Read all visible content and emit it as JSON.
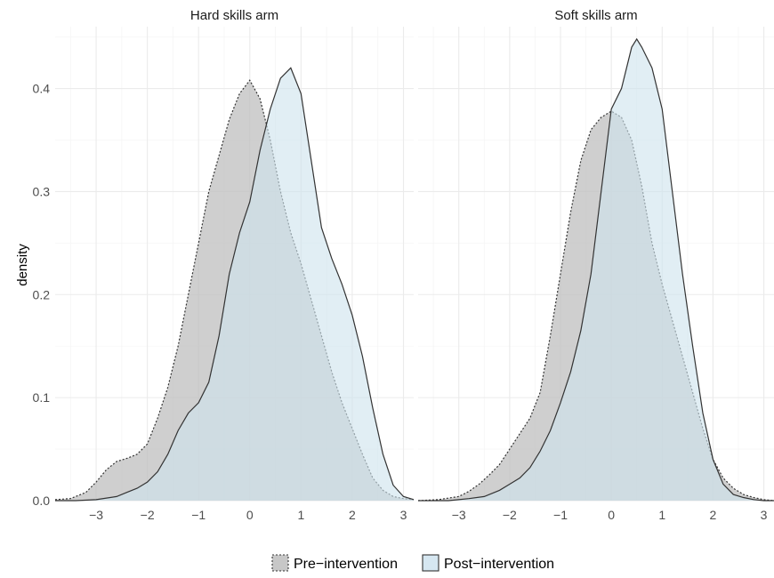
{
  "chart_data": {
    "type": "area",
    "chart_kind": "faceted density plot",
    "ylabel": "density",
    "xlabel": "",
    "xlim": [
      -3.8,
      3.2
    ],
    "ylim": [
      0,
      0.46
    ],
    "x_ticks": [
      -3,
      -2,
      -1,
      0,
      1,
      2,
      3
    ],
    "y_ticks": [
      0.0,
      0.1,
      0.2,
      0.3,
      0.4
    ],
    "y_tick_labels": [
      "0.0",
      "0.1",
      "0.2",
      "0.3",
      "0.4"
    ],
    "x_tick_labels": [
      "−3",
      "−2",
      "−1",
      "0",
      "1",
      "2",
      "3"
    ],
    "grid": true,
    "legend": {
      "position": "bottom",
      "entries": [
        {
          "label": "Pre−intervention",
          "fill": "#bdbdbd",
          "line": "dotted"
        },
        {
          "label": "Post−intervention",
          "fill": "#cfe3ee",
          "line": "solid"
        }
      ]
    },
    "colors": {
      "pre_fill": "#bdbdbd",
      "post_fill": "#cfe3ee",
      "outline": "#333333"
    },
    "facets": [
      {
        "title": "Hard skills arm",
        "series": [
          {
            "name": "Pre−intervention",
            "x": [
              -3.8,
              -3.5,
              -3.2,
              -3.0,
              -2.8,
              -2.6,
              -2.4,
              -2.2,
              -2.0,
              -1.8,
              -1.6,
              -1.4,
              -1.2,
              -1.0,
              -0.8,
              -0.6,
              -0.4,
              -0.2,
              0.0,
              0.2,
              0.4,
              0.6,
              0.8,
              1.0,
              1.2,
              1.4,
              1.6,
              1.8,
              2.0,
              2.2,
              2.4,
              2.6,
              2.8,
              3.0,
              3.2
            ],
            "y": [
              0.001,
              0.002,
              0.008,
              0.018,
              0.03,
              0.038,
              0.041,
              0.045,
              0.055,
              0.08,
              0.11,
              0.15,
              0.2,
              0.25,
              0.3,
              0.335,
              0.37,
              0.395,
              0.408,
              0.39,
              0.35,
              0.3,
              0.26,
              0.23,
              0.195,
              0.16,
              0.125,
              0.095,
              0.07,
              0.045,
              0.022,
              0.01,
              0.004,
              0.002,
              0.001
            ]
          },
          {
            "name": "Post−intervention",
            "x": [
              -3.8,
              -3.4,
              -3.0,
              -2.6,
              -2.4,
              -2.2,
              -2.0,
              -1.8,
              -1.6,
              -1.4,
              -1.2,
              -1.0,
              -0.8,
              -0.6,
              -0.4,
              -0.2,
              0.0,
              0.2,
              0.4,
              0.6,
              0.8,
              1.0,
              1.2,
              1.4,
              1.6,
              1.8,
              2.0,
              2.2,
              2.4,
              2.6,
              2.8,
              3.0,
              3.2
            ],
            "y": [
              0.0,
              0.0,
              0.001,
              0.004,
              0.008,
              0.012,
              0.018,
              0.028,
              0.045,
              0.068,
              0.085,
              0.095,
              0.115,
              0.16,
              0.22,
              0.26,
              0.29,
              0.34,
              0.38,
              0.41,
              0.42,
              0.395,
              0.33,
              0.265,
              0.235,
              0.21,
              0.18,
              0.14,
              0.09,
              0.045,
              0.015,
              0.004,
              0.001
            ]
          }
        ]
      },
      {
        "title": "Soft skills arm",
        "series": [
          {
            "name": "Pre−intervention",
            "x": [
              -3.8,
              -3.4,
              -3.0,
              -2.8,
              -2.6,
              -2.4,
              -2.2,
              -2.0,
              -1.8,
              -1.6,
              -1.4,
              -1.2,
              -1.0,
              -0.8,
              -0.6,
              -0.4,
              -0.2,
              0.0,
              0.2,
              0.4,
              0.6,
              0.8,
              1.0,
              1.2,
              1.4,
              1.6,
              1.8,
              2.0,
              2.2,
              2.4,
              2.6,
              2.8,
              3.0,
              3.2
            ],
            "y": [
              0.0,
              0.001,
              0.004,
              0.009,
              0.016,
              0.025,
              0.035,
              0.05,
              0.065,
              0.08,
              0.105,
              0.16,
              0.22,
              0.28,
              0.33,
              0.36,
              0.372,
              0.378,
              0.372,
              0.35,
              0.305,
              0.25,
              0.21,
              0.175,
              0.14,
              0.105,
              0.07,
              0.04,
              0.022,
              0.012,
              0.006,
              0.003,
              0.001,
              0.0
            ]
          },
          {
            "name": "Post−intervention",
            "x": [
              -3.8,
              -3.2,
              -2.8,
              -2.5,
              -2.2,
              -2.0,
              -1.8,
              -1.6,
              -1.4,
              -1.2,
              -1.0,
              -0.8,
              -0.6,
              -0.4,
              -0.2,
              0.0,
              0.2,
              0.4,
              0.5,
              0.6,
              0.8,
              1.0,
              1.2,
              1.4,
              1.6,
              1.8,
              2.0,
              2.2,
              2.4,
              2.6,
              2.8,
              3.0,
              3.2
            ],
            "y": [
              0.0,
              0.0,
              0.002,
              0.004,
              0.01,
              0.016,
              0.022,
              0.032,
              0.048,
              0.068,
              0.095,
              0.125,
              0.165,
              0.22,
              0.3,
              0.38,
              0.4,
              0.44,
              0.448,
              0.44,
              0.42,
              0.38,
              0.3,
              0.22,
              0.15,
              0.085,
              0.04,
              0.016,
              0.006,
              0.003,
              0.001,
              0.0,
              0.0
            ]
          }
        ]
      }
    ]
  }
}
